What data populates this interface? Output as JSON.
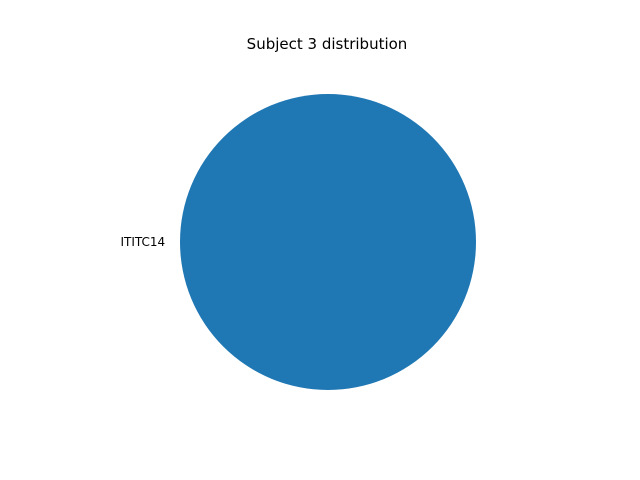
{
  "chart_data": {
    "type": "pie",
    "title": "Subject 3 distribution",
    "categories": [
      "ITITC14"
    ],
    "values": [
      1
    ],
    "colors": [
      "#1f77b4"
    ]
  }
}
